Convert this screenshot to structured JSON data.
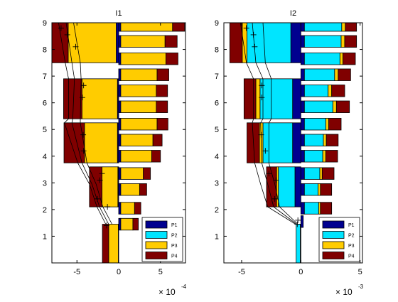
{
  "chart_data": [
    {
      "type": "bar",
      "title": "I1",
      "orientation": "horizontal",
      "xlim": [
        -8,
        8
      ],
      "ylim": [
        0,
        9
      ],
      "xticks": [
        -5,
        0,
        5
      ],
      "yticks": [
        1,
        2,
        3,
        4,
        5,
        6,
        7,
        8,
        9
      ],
      "xlabel": "",
      "ylabel": "",
      "multiplier_base": "× 10",
      "multiplier_exp": "-4",
      "legend": {
        "entries": [
          "P1",
          "P2",
          "P3",
          "P4"
        ],
        "position": "bottom-right"
      },
      "colors": {
        "P1": "#00008f",
        "P2": "#00e5ff",
        "P3": "#ffcc00",
        "P4": "#800000"
      },
      "left_groups": [
        {
          "y0": 0.0,
          "y1": 1.45,
          "P1": 0.05,
          "P2": 0.0,
          "P3": 1.15,
          "P4": 0.75
        },
        {
          "y0": 2.1,
          "y1": 3.6,
          "P1": 0.1,
          "P2": 0.0,
          "P3": 1.9,
          "P4": 1.5
        },
        {
          "y0": 3.75,
          "y1": 5.25,
          "P1": 0.15,
          "P2": 0.0,
          "P3": 3.95,
          "P4": 2.45
        },
        {
          "y0": 5.4,
          "y1": 6.9,
          "P1": 0.15,
          "P2": 0.0,
          "P3": 4.25,
          "P4": 2.2
        },
        {
          "y0": 7.5,
          "y1": 9.0,
          "P1": 0.3,
          "P2": 0.0,
          "P3": 5.75,
          "P4": 2.55
        }
      ],
      "right_bars": [
        {
          "y": 1.45,
          "P1": 0.25,
          "P2": 0.0,
          "P3": 1.45,
          "P4": 0.65
        },
        {
          "y": 2.05,
          "P1": 0.25,
          "P2": 0.0,
          "P3": 1.65,
          "P4": 0.75
        },
        {
          "y": 2.75,
          "P1": 0.25,
          "P2": 0.0,
          "P3": 2.25,
          "P4": 0.85
        },
        {
          "y": 3.35,
          "P1": 0.25,
          "P2": 0.0,
          "P3": 2.7,
          "P4": 0.85
        },
        {
          "y": 4.0,
          "P1": 0.25,
          "P2": 0.0,
          "P3": 3.7,
          "P4": 1.05
        },
        {
          "y": 4.6,
          "P1": 0.25,
          "P2": 0.0,
          "P3": 3.85,
          "P4": 1.1
        },
        {
          "y": 5.2,
          "P1": 0.25,
          "P2": 0.0,
          "P3": 4.35,
          "P4": 1.3
        },
        {
          "y": 5.85,
          "P1": 0.25,
          "P2": 0.0,
          "P3": 4.25,
          "P4": 1.35
        },
        {
          "y": 6.45,
          "P1": 0.25,
          "P2": 0.0,
          "P3": 4.25,
          "P4": 1.35
        },
        {
          "y": 7.05,
          "P1": 0.25,
          "P2": 0.0,
          "P3": 4.35,
          "P4": 1.4
        },
        {
          "y": 7.65,
          "P1": 0.25,
          "P2": 0.0,
          "P3": 5.4,
          "P4": 1.45
        },
        {
          "y": 8.3,
          "P1": 0.25,
          "P2": 0.0,
          "P3": 5.3,
          "P4": 1.45
        },
        {
          "y": 8.9,
          "P1": 0.25,
          "P2": 0.0,
          "P3": 6.2,
          "P4": 1.45
        }
      ],
      "trend_lines": [
        [
          [
            -1.55,
            1.45
          ],
          [
            -2.6,
            2.1
          ],
          [
            -3.5,
            2.95
          ],
          [
            -4.9,
            3.75
          ],
          [
            -6.5,
            5.25
          ],
          [
            -6.0,
            5.4
          ],
          [
            -6.0,
            6.9
          ],
          [
            -6.4,
            7.5
          ],
          [
            -7.2,
            9.0
          ]
        ],
        [
          [
            -1.2,
            1.45
          ],
          [
            -2.3,
            2.1
          ],
          [
            -3.2,
            2.95
          ],
          [
            -4.4,
            3.75
          ],
          [
            -5.6,
            5.25
          ],
          [
            -5.5,
            5.4
          ],
          [
            -5.3,
            6.9
          ],
          [
            -5.6,
            7.5
          ],
          [
            -6.3,
            9.0
          ]
        ],
        [
          [
            -0.8,
            1.45
          ],
          [
            -1.9,
            2.1
          ],
          [
            -2.7,
            2.95
          ],
          [
            -3.8,
            3.75
          ],
          [
            -4.6,
            5.25
          ],
          [
            -4.6,
            5.4
          ],
          [
            -4.5,
            6.9
          ],
          [
            -4.6,
            7.5
          ],
          [
            -5.4,
            9.0
          ]
        ]
      ],
      "trend_markers": [
        [
          -2.55,
          2.4
        ],
        [
          -2.25,
          3.1
        ],
        [
          -2.0,
          3.35
        ],
        [
          -4.2,
          4.2
        ],
        [
          -4.25,
          4.8
        ],
        [
          -4.35,
          6.2
        ],
        [
          -4.2,
          6.65
        ],
        [
          -5.15,
          8.1
        ],
        [
          -6.15,
          8.55
        ],
        [
          -6.9,
          8.8
        ],
        [
          -1.45,
          1.4
        ],
        [
          -1.35,
          2.1
        ]
      ]
    },
    {
      "type": "bar",
      "title": "I2",
      "orientation": "horizontal",
      "xlim": [
        -6.5,
        5.2
      ],
      "ylim": [
        0,
        9
      ],
      "xticks": [
        -5,
        0,
        5
      ],
      "yticks": [
        1,
        2,
        3,
        4,
        5,
        6,
        7,
        8,
        9
      ],
      "xlabel": "",
      "ylabel": "",
      "multiplier_base": "× 10",
      "multiplier_exp": "-3",
      "legend": {
        "entries": [
          "P1",
          "P2",
          "P3",
          "P4"
        ],
        "position": "bottom-right"
      },
      "colors": {
        "P1": "#00008f",
        "P2": "#00e5ff",
        "P3": "#ffcc00",
        "P4": "#800000"
      },
      "left_groups": [
        {
          "y0": 0.0,
          "y1": 1.45,
          "P1": 0.05,
          "P2": 0.35,
          "P3": 0.0,
          "P4": 0.0
        },
        {
          "y0": 2.1,
          "y1": 3.6,
          "P1": 0.5,
          "P2": 1.4,
          "P3": 0.15,
          "P4": 0.85
        },
        {
          "y0": 3.75,
          "y1": 5.25,
          "P1": 0.7,
          "P2": 2.5,
          "P3": 0.3,
          "P4": 1.05
        },
        {
          "y0": 5.4,
          "y1": 6.9,
          "P1": 0.7,
          "P2": 2.75,
          "P3": 0.35,
          "P4": 1.0
        },
        {
          "y0": 7.5,
          "y1": 9.0,
          "P1": 0.85,
          "P2": 3.7,
          "P3": 0.4,
          "P4": 1.05
        }
      ],
      "right_bars": [
        {
          "y": 1.55,
          "P1": 0.2,
          "P2": 0.0,
          "P3": 0.0,
          "P4": 0.0
        },
        {
          "y": 2.05,
          "P1": 0.3,
          "P2": 1.2,
          "P3": 0.15,
          "P4": 0.95
        },
        {
          "y": 2.75,
          "P1": 0.3,
          "P2": 1.15,
          "P3": 0.2,
          "P4": 0.95
        },
        {
          "y": 3.35,
          "P1": 0.3,
          "P2": 1.3,
          "P3": 0.2,
          "P4": 1.0
        },
        {
          "y": 4.0,
          "P1": 0.3,
          "P2": 1.55,
          "P3": 0.25,
          "P4": 1.0
        },
        {
          "y": 4.6,
          "P1": 0.3,
          "P2": 1.6,
          "P3": 0.25,
          "P4": 1.0
        },
        {
          "y": 5.2,
          "P1": 0.3,
          "P2": 1.8,
          "P3": 0.25,
          "P4": 1.05
        },
        {
          "y": 5.85,
          "P1": 0.3,
          "P2": 2.4,
          "P3": 0.3,
          "P4": 1.1
        },
        {
          "y": 6.45,
          "P1": 0.3,
          "P2": 2.0,
          "P3": 0.3,
          "P4": 1.1
        },
        {
          "y": 7.05,
          "P1": 0.3,
          "P2": 2.55,
          "P3": 0.3,
          "P4": 1.05
        },
        {
          "y": 7.65,
          "P1": 0.3,
          "P2": 3.0,
          "P3": 0.25,
          "P4": 1.05
        },
        {
          "y": 8.3,
          "P1": 0.3,
          "P2": 3.1,
          "P3": 0.3,
          "P4": 1.0
        },
        {
          "y": 8.9,
          "P1": 0.3,
          "P2": 3.15,
          "P3": 0.3,
          "P4": 0.95
        }
      ],
      "trend_lines": [
        [
          [
            -0.45,
            1.45
          ],
          [
            -2.8,
            2.1
          ],
          [
            -3.4,
            2.95
          ],
          [
            -3.9,
            3.75
          ],
          [
            -4.1,
            5.25
          ],
          [
            -4.0,
            5.4
          ],
          [
            -4.0,
            6.9
          ],
          [
            -4.6,
            7.5
          ],
          [
            -5.1,
            9.0
          ]
        ],
        [
          [
            -0.35,
            1.45
          ],
          [
            -2.3,
            2.1
          ],
          [
            -2.8,
            2.95
          ],
          [
            -3.3,
            3.75
          ],
          [
            -3.4,
            5.25
          ],
          [
            -3.2,
            5.4
          ],
          [
            -3.2,
            6.9
          ],
          [
            -3.8,
            7.5
          ],
          [
            -4.1,
            9.0
          ]
        ],
        [
          [
            -0.25,
            1.45
          ],
          [
            -1.8,
            2.1
          ],
          [
            -2.2,
            2.95
          ],
          [
            -2.7,
            3.75
          ],
          [
            -2.7,
            5.25
          ],
          [
            -2.5,
            5.4
          ],
          [
            -2.5,
            6.9
          ],
          [
            -3.0,
            7.5
          ],
          [
            -3.2,
            9.0
          ]
        ]
      ],
      "trend_markers": [
        [
          -2.2,
          2.4
        ],
        [
          -2.1,
          3.1
        ],
        [
          -2.7,
          3.35
        ],
        [
          -3.0,
          4.2
        ],
        [
          -3.35,
          4.8
        ],
        [
          -3.3,
          6.2
        ],
        [
          -3.3,
          6.65
        ],
        [
          -3.9,
          8.1
        ],
        [
          -4.0,
          8.55
        ],
        [
          -4.6,
          8.8
        ],
        [
          -0.3,
          1.45
        ],
        [
          -0.25,
          1.6
        ]
      ]
    }
  ]
}
